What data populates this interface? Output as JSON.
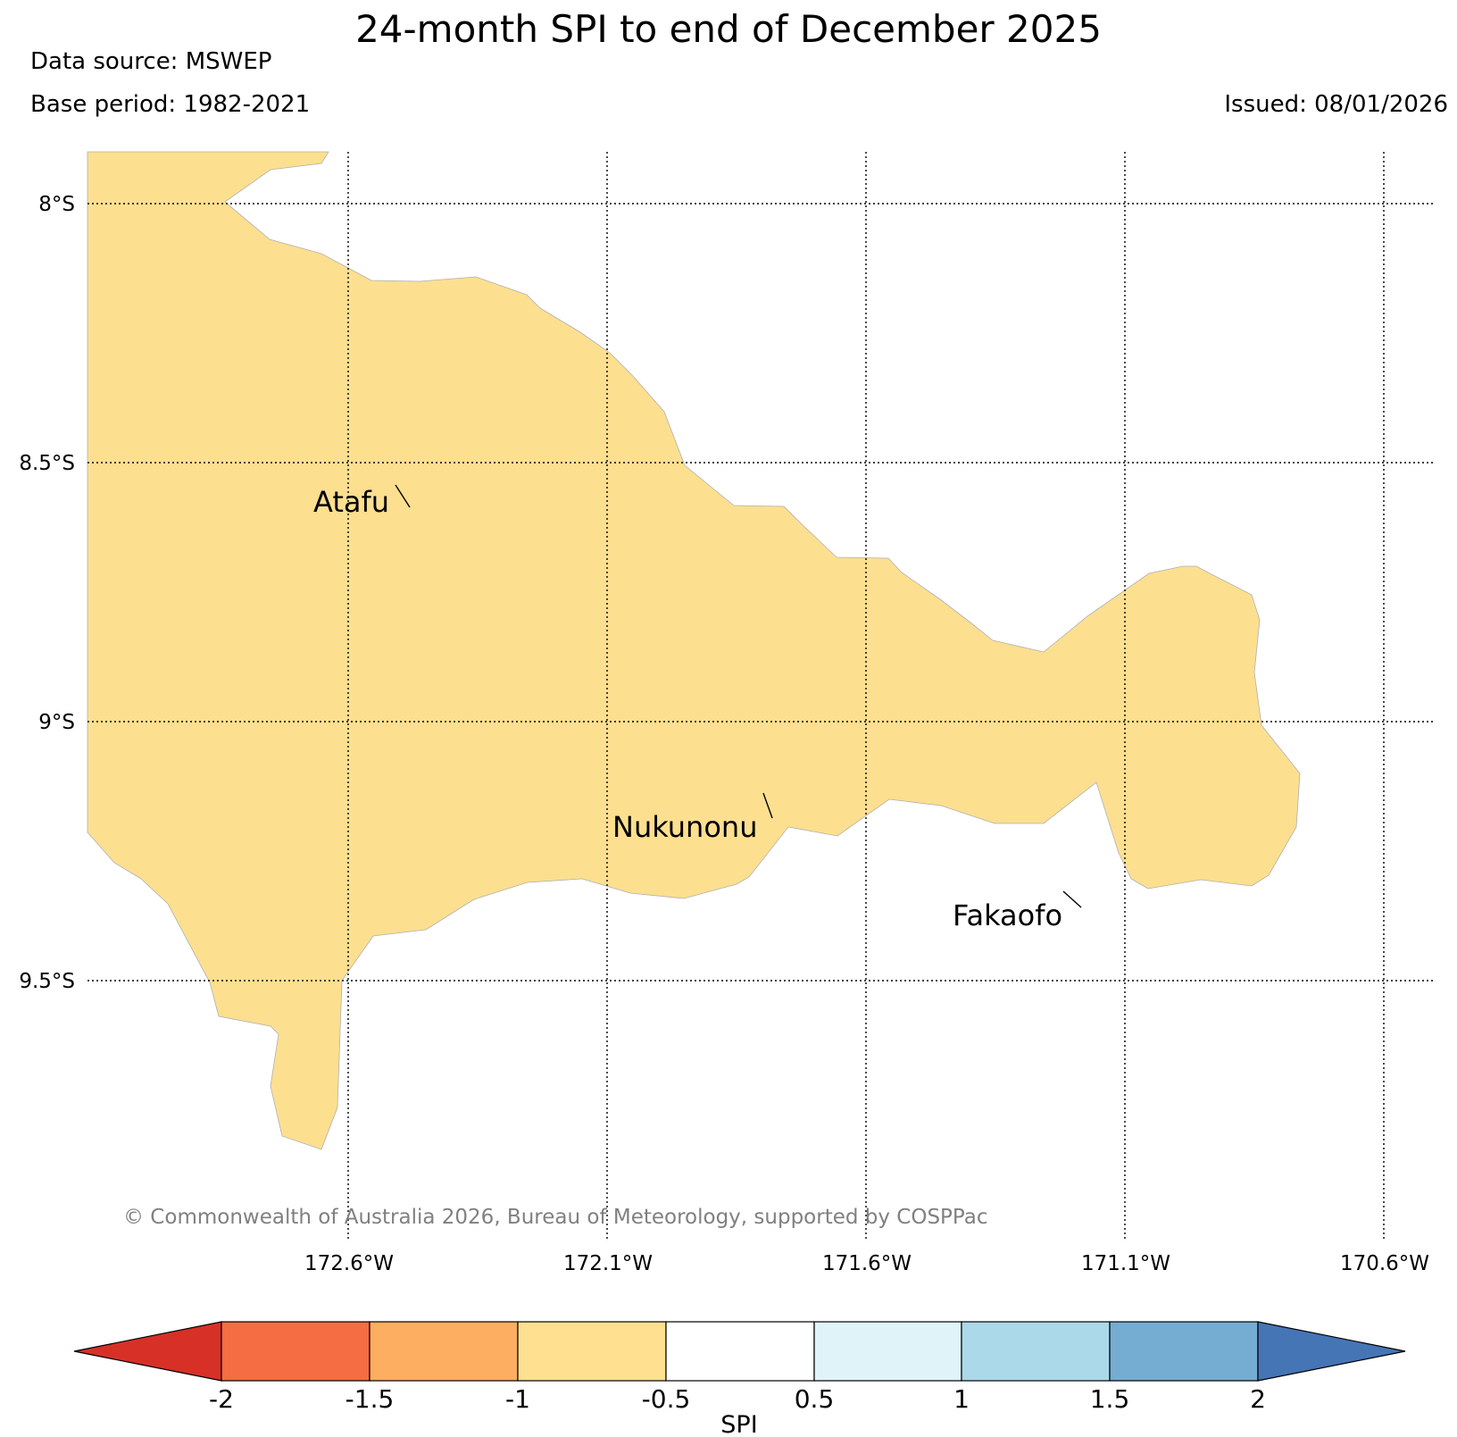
{
  "header": {
    "title": "24-month SPI to end of December 2025",
    "data_source": "Data source: MSWEP",
    "base_period": "Base period: 1982-2021",
    "issued": "Issued: 08/01/2026"
  },
  "map": {
    "lat_labels": [
      "8°S",
      "8.5°S",
      "9°S",
      "9.5°S"
    ],
    "lon_labels": [
      "172.6°W",
      "172.1°W",
      "171.6°W",
      "171.1°W",
      "170.6°W"
    ],
    "region_spi_category": "-1 to -0.5",
    "region_color": "#fddf90",
    "places": [
      {
        "name": "Atafu"
      },
      {
        "name": "Nukunonu"
      },
      {
        "name": "Fakaofo"
      }
    ],
    "copyright": "© Commonwealth of Australia 2026, Bureau of Meteorology, supported by COSPPac"
  },
  "colorbar": {
    "label": "SPI",
    "ticks": [
      "-2",
      "-1.5",
      "-1",
      "-0.5",
      "0.5",
      "1",
      "1.5",
      "2"
    ],
    "low_extend_color": "#d73027",
    "high_extend_color": "#4575b4",
    "colors": [
      "#f46d43",
      "#fdae61",
      "#fee090",
      "#ffffff",
      "#e0f3f8",
      "#abd9e9",
      "#74add1"
    ]
  }
}
